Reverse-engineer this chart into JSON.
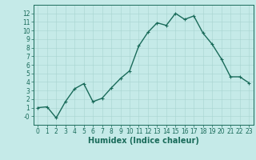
{
  "x": [
    0,
    1,
    2,
    3,
    4,
    5,
    6,
    7,
    8,
    9,
    10,
    11,
    12,
    13,
    14,
    15,
    16,
    17,
    18,
    19,
    20,
    21,
    22,
    23
  ],
  "y": [
    1.0,
    1.1,
    -0.2,
    1.7,
    3.2,
    3.8,
    1.7,
    2.1,
    3.3,
    4.4,
    5.3,
    8.2,
    9.8,
    10.9,
    10.6,
    12.0,
    11.3,
    11.7,
    9.7,
    8.4,
    6.7,
    4.6,
    4.6,
    3.9
  ],
  "line_color": "#1a6b5a",
  "marker": "+",
  "marker_size": 3,
  "bg_color": "#c5eae8",
  "grid_color": "#a8d4d0",
  "xlabel": "Humidex (Indice chaleur)",
  "xlim": [
    -0.5,
    23.5
  ],
  "ylim": [
    -1,
    13
  ],
  "yticks": [
    0,
    1,
    2,
    3,
    4,
    5,
    6,
    7,
    8,
    9,
    10,
    11,
    12
  ],
  "ytick_labels": [
    "-0",
    "1",
    "2",
    "3",
    "4",
    "5",
    "6",
    "7",
    "8",
    "9",
    "10",
    "11",
    "12"
  ],
  "xticks": [
    0,
    1,
    2,
    3,
    4,
    5,
    6,
    7,
    8,
    9,
    10,
    11,
    12,
    13,
    14,
    15,
    16,
    17,
    18,
    19,
    20,
    21,
    22,
    23
  ],
  "tick_label_size": 5.5,
  "xlabel_size": 7,
  "line_width": 1.0,
  "marker_edge_width": 0.8
}
